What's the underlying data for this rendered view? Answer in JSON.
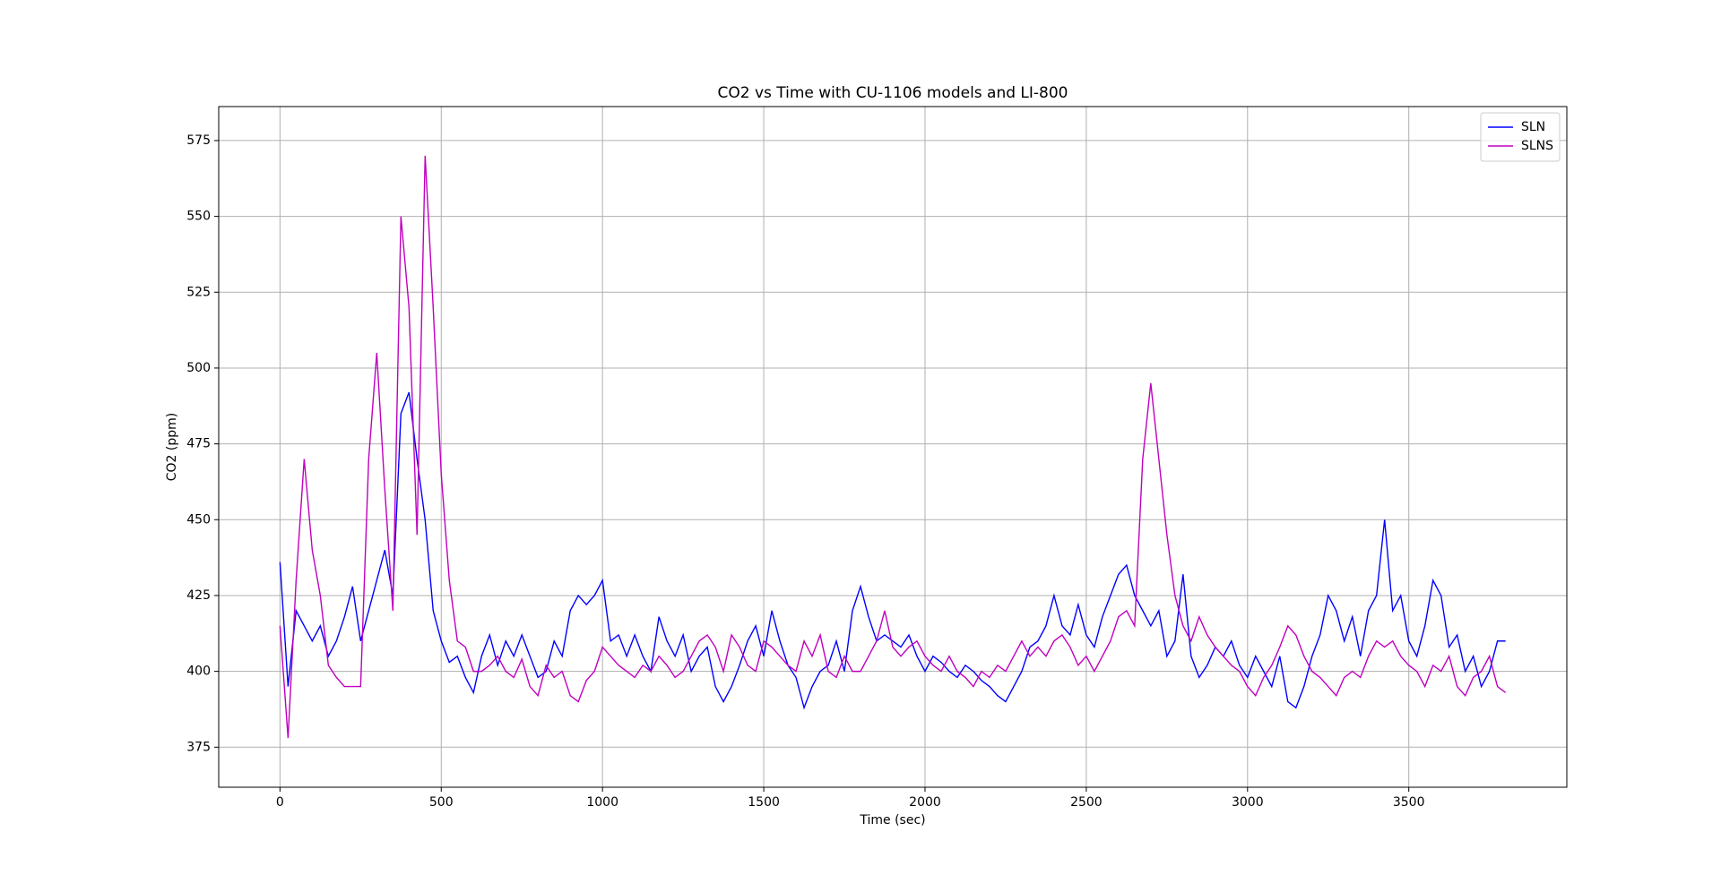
{
  "chart_data": {
    "type": "line",
    "title": "CO2 vs Time with CU-1106 models and LI-800",
    "x_label": "Time (sec)",
    "y_label": "CO2 (ppm)",
    "xlim": [
      -190,
      3990
    ],
    "ylim": [
      361.8,
      586.2
    ],
    "xticks": [
      0,
      500,
      1000,
      1500,
      2000,
      2500,
      3000,
      3500
    ],
    "yticks": [
      375,
      400,
      425,
      450,
      475,
      500,
      525,
      550,
      575
    ],
    "grid": true,
    "legend": "upper right",
    "x": [
      0,
      25,
      50,
      75,
      100,
      125,
      150,
      175,
      200,
      225,
      250,
      275,
      300,
      325,
      350,
      375,
      400,
      425,
      450,
      475,
      500,
      525,
      550,
      575,
      600,
      625,
      650,
      675,
      700,
      725,
      750,
      775,
      800,
      825,
      850,
      875,
      900,
      925,
      950,
      975,
      1000,
      1025,
      1050,
      1075,
      1100,
      1125,
      1150,
      1175,
      1200,
      1225,
      1250,
      1275,
      1300,
      1325,
      1350,
      1375,
      1400,
      1425,
      1450,
      1475,
      1500,
      1525,
      1550,
      1575,
      1600,
      1625,
      1650,
      1675,
      1700,
      1725,
      1750,
      1775,
      1800,
      1825,
      1850,
      1875,
      1900,
      1925,
      1950,
      1975,
      2000,
      2025,
      2050,
      2075,
      2100,
      2125,
      2150,
      2175,
      2200,
      2225,
      2250,
      2275,
      2300,
      2325,
      2350,
      2375,
      2400,
      2425,
      2450,
      2475,
      2500,
      2525,
      2550,
      2575,
      2600,
      2625,
      2650,
      2675,
      2700,
      2725,
      2750,
      2775,
      2800,
      2825,
      2850,
      2875,
      2900,
      2925,
      2950,
      2975,
      3000,
      3025,
      3050,
      3075,
      3100,
      3125,
      3150,
      3175,
      3200,
      3225,
      3250,
      3275,
      3300,
      3325,
      3350,
      3375,
      3400,
      3425,
      3450,
      3475,
      3500,
      3525,
      3550,
      3575,
      3600,
      3625,
      3650,
      3675,
      3700,
      3725,
      3750,
      3775,
      3800
    ],
    "series": [
      {
        "name": "SLN",
        "color": "#0000ff",
        "values": [
          436,
          395,
          420,
          415,
          410,
          415,
          405,
          410,
          418,
          428,
          410,
          420,
          430,
          440,
          425,
          485,
          492,
          470,
          450,
          420,
          410,
          403,
          405,
          398,
          393,
          405,
          412,
          402,
          410,
          405,
          412,
          405,
          398,
          400,
          410,
          405,
          420,
          425,
          422,
          425,
          430,
          410,
          412,
          405,
          412,
          405,
          400,
          418,
          410,
          405,
          412,
          400,
          405,
          408,
          395,
          390,
          395,
          402,
          410,
          415,
          405,
          420,
          410,
          402,
          398,
          388,
          395,
          400,
          402,
          410,
          400,
          420,
          428,
          418,
          410,
          412,
          410,
          408,
          412,
          405,
          400,
          405,
          403,
          400,
          398,
          402,
          400,
          397,
          395,
          392,
          390,
          395,
          400,
          408,
          410,
          415,
          425,
          415,
          412,
          422,
          412,
          408,
          418,
          425,
          432,
          435,
          425,
          420,
          415,
          420,
          405,
          410,
          432,
          405,
          398,
          402,
          408,
          405,
          410,
          402,
          398,
          405,
          400,
          395,
          405,
          390,
          388,
          395,
          405,
          412,
          425,
          420,
          410,
          418,
          405,
          420,
          425,
          450,
          420,
          425,
          410,
          405,
          415,
          430,
          425,
          408,
          412,
          400,
          405,
          395,
          400,
          410,
          410
        ]
      },
      {
        "name": "SLNS",
        "color": "#bf00bf",
        "values": [
          415,
          378,
          430,
          470,
          440,
          425,
          402,
          398,
          395,
          395,
          395,
          470,
          505,
          460,
          420,
          550,
          520,
          445,
          570,
          520,
          465,
          430,
          410,
          408,
          400,
          400,
          402,
          405,
          400,
          398,
          404,
          395,
          392,
          402,
          398,
          400,
          392,
          390,
          397,
          400,
          408,
          405,
          402,
          400,
          398,
          402,
          400,
          405,
          402,
          398,
          400,
          405,
          410,
          412,
          408,
          400,
          412,
          408,
          402,
          400,
          410,
          408,
          405,
          402,
          400,
          410,
          405,
          412,
          400,
          398,
          405,
          400,
          400,
          405,
          410,
          420,
          408,
          405,
          408,
          410,
          405,
          402,
          400,
          405,
          400,
          398,
          395,
          400,
          398,
          402,
          400,
          405,
          410,
          405,
          408,
          405,
          410,
          412,
          408,
          402,
          405,
          400,
          405,
          410,
          418,
          420,
          415,
          470,
          495,
          470,
          445,
          425,
          415,
          410,
          418,
          412,
          408,
          405,
          402,
          400,
          395,
          392,
          398,
          402,
          408,
          415,
          412,
          405,
          400,
          398,
          395,
          392,
          398,
          400,
          398,
          405,
          410,
          408,
          410,
          405,
          402,
          400,
          395,
          402,
          400,
          405,
          395,
          392,
          398,
          400,
          405,
          395,
          393
        ]
      }
    ]
  }
}
